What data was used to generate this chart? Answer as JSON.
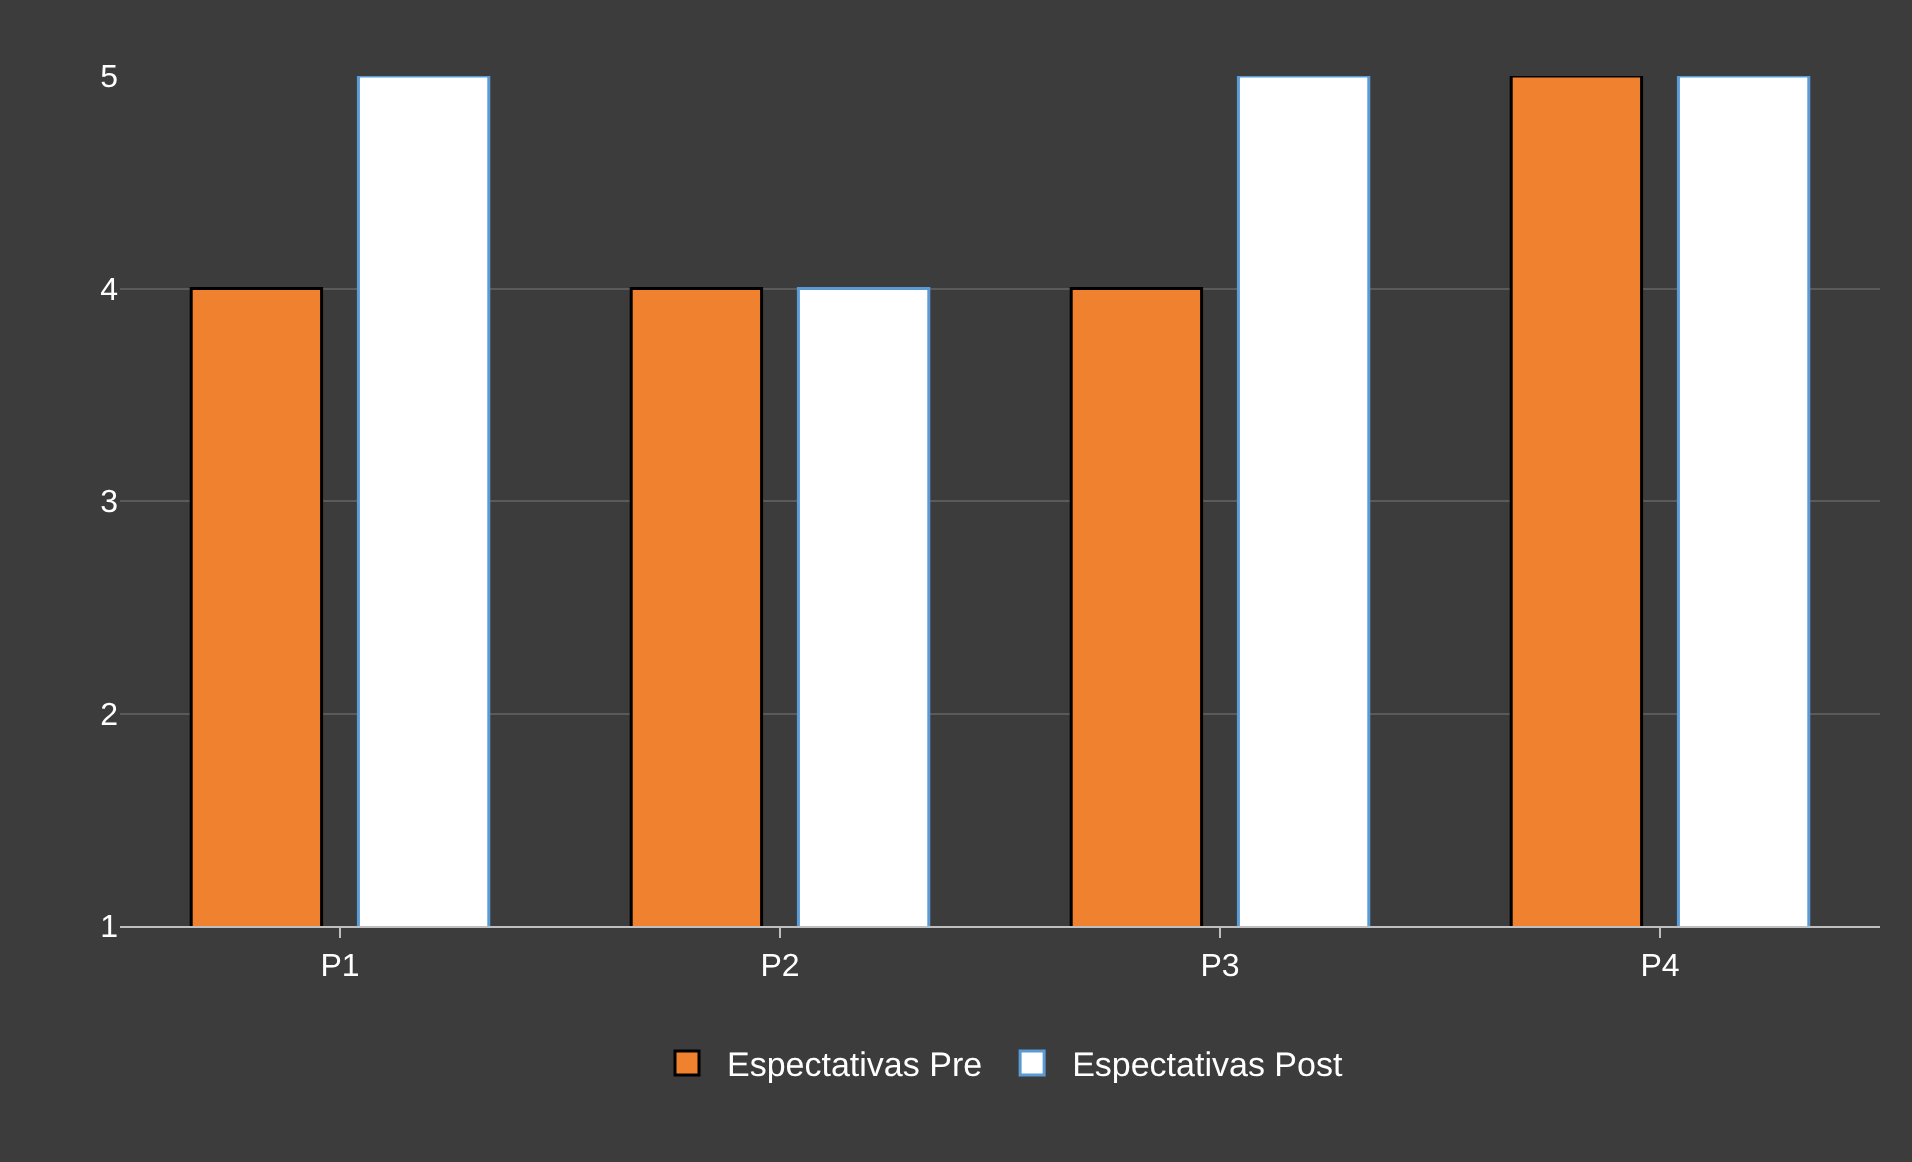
{
  "chart_data": {
    "type": "bar",
    "categories": [
      "P1",
      "P2",
      "P3",
      "P4"
    ],
    "series": [
      {
        "name": "Espectativas Pre",
        "color": "#f0822f",
        "values": [
          4,
          4,
          4,
          5
        ]
      },
      {
        "name": "Espectativas Post",
        "color": "#ffffff",
        "values": [
          5,
          4,
          5,
          5
        ]
      }
    ],
    "ylim": [
      1,
      5
    ],
    "yticks": [
      1,
      2,
      3,
      4,
      5
    ],
    "grid": "y",
    "legend": "bottom"
  }
}
